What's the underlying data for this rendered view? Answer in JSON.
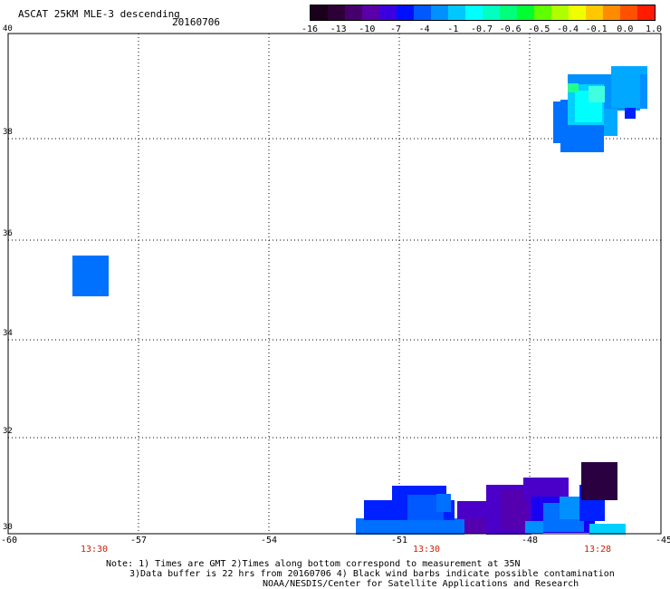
{
  "title": "ASCAT 25KM MLE-3 descending",
  "date": "20160706",
  "colorbar": {
    "labels": [
      "-16",
      "-13",
      "-10",
      "-7",
      "-4",
      "-1",
      "-0.7",
      "-0.6",
      "-0.5",
      "-0.4",
      "-0.1",
      "0.0",
      "1.0"
    ],
    "colors": [
      "#1a001a",
      "#2e0038",
      "#45006b",
      "#5a00a8",
      "#3c00e0",
      "#0010ff",
      "#0058ff",
      "#0090ff",
      "#00c8ff",
      "#00ffff",
      "#00ffc0",
      "#00ff7a",
      "#00ff30",
      "#60ff00",
      "#b0ff00",
      "#f0ff00",
      "#ffc800",
      "#ff8c00",
      "#ff5000",
      "#ff1a00"
    ]
  },
  "axes": {
    "x_ticks": [
      "-60",
      "-57",
      "-54",
      "-51",
      "-48",
      "-45"
    ],
    "y_ticks": [
      "40",
      "38",
      "36",
      "34",
      "32",
      "30"
    ]
  },
  "time_labels": [
    "13:30",
    "13:30",
    "13:28"
  ],
  "notes": [
    "Note: 1) Times are GMT 2)Times along bottom correspond to measurement at 35N",
    "3)Data buffer is 22 hrs from 20160706 4) Black wind barbs indicate possible contamination",
    "NOAA/NESDIS/Center for Satellite Applications and Research"
  ]
}
